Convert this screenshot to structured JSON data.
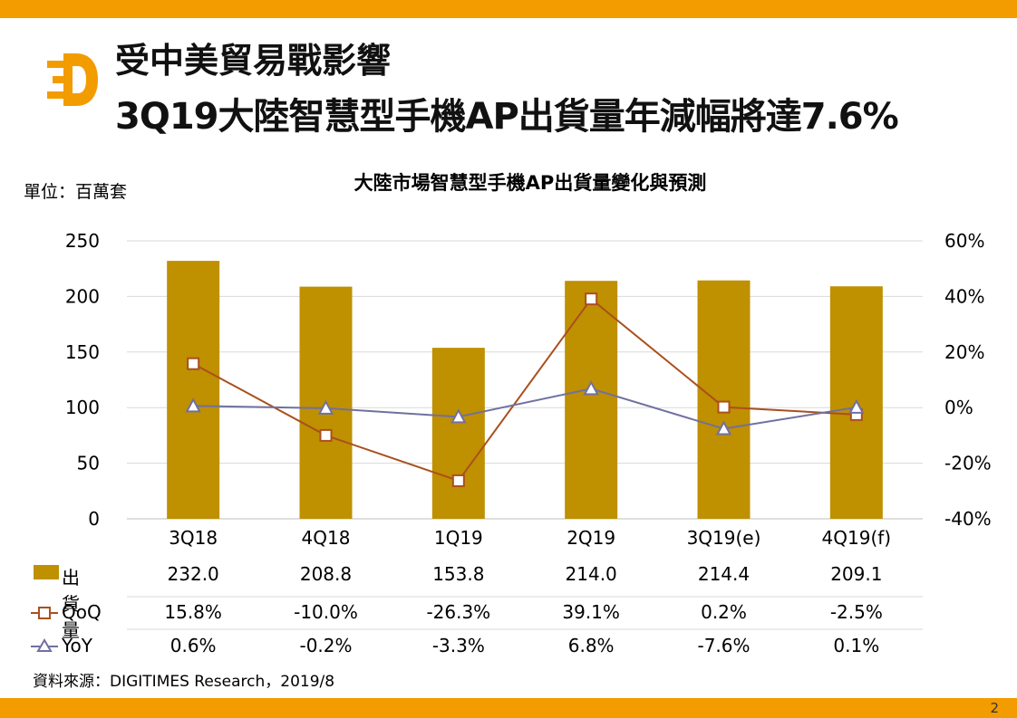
{
  "title": {
    "line1": "受中美貿易戰影響",
    "line2": "3Q19大陸智慧型手機AP出貨量年減幅將達7.6%"
  },
  "unit_label": "單位：百萬套",
  "source": "資料來源：DIGITIMES Research，2019/8",
  "page_number": "2",
  "colors": {
    "accent": "#F29C00",
    "bar": "#BF9000",
    "qoq": "#A9501E",
    "yoy": "#7070A0"
  },
  "chart_data": {
    "type": "bar+line",
    "title": "大陸市場智慧型手機AP出貨量變化與預測",
    "categories": [
      "3Q18",
      "4Q18",
      "1Q19",
      "2Q19",
      "3Q19(e)",
      "4Q19(f)"
    ],
    "left_axis": {
      "min": 0,
      "max": 250,
      "ticks": [
        "0",
        "50",
        "100",
        "150",
        "200",
        "250"
      ]
    },
    "right_axis": {
      "min": -40,
      "max": 60,
      "ticks": [
        "-40%",
        "-20%",
        "0%",
        "20%",
        "40%",
        "60%"
      ]
    },
    "series": [
      {
        "name": "出貨量",
        "type": "bar",
        "axis": "left",
        "values": [
          232.0,
          208.8,
          153.8,
          214.0,
          214.4,
          209.1
        ],
        "labels": [
          "232.0",
          "208.8",
          "153.8",
          "214.0",
          "214.4",
          "209.1"
        ]
      },
      {
        "name": "QoQ",
        "type": "line",
        "marker": "square",
        "axis": "right",
        "values": [
          15.8,
          -10.0,
          -26.3,
          39.1,
          0.2,
          -2.5
        ],
        "labels": [
          "15.8%",
          "-10.0%",
          "-26.3%",
          "39.1%",
          "0.2%",
          "-2.5%"
        ]
      },
      {
        "name": "YoY",
        "type": "line",
        "marker": "triangle",
        "axis": "right",
        "values": [
          0.6,
          -0.2,
          -3.3,
          6.8,
          -7.6,
          0.1
        ],
        "labels": [
          "0.6%",
          "-0.2%",
          "-3.3%",
          "6.8%",
          "-7.6%",
          "0.1%"
        ]
      }
    ]
  }
}
